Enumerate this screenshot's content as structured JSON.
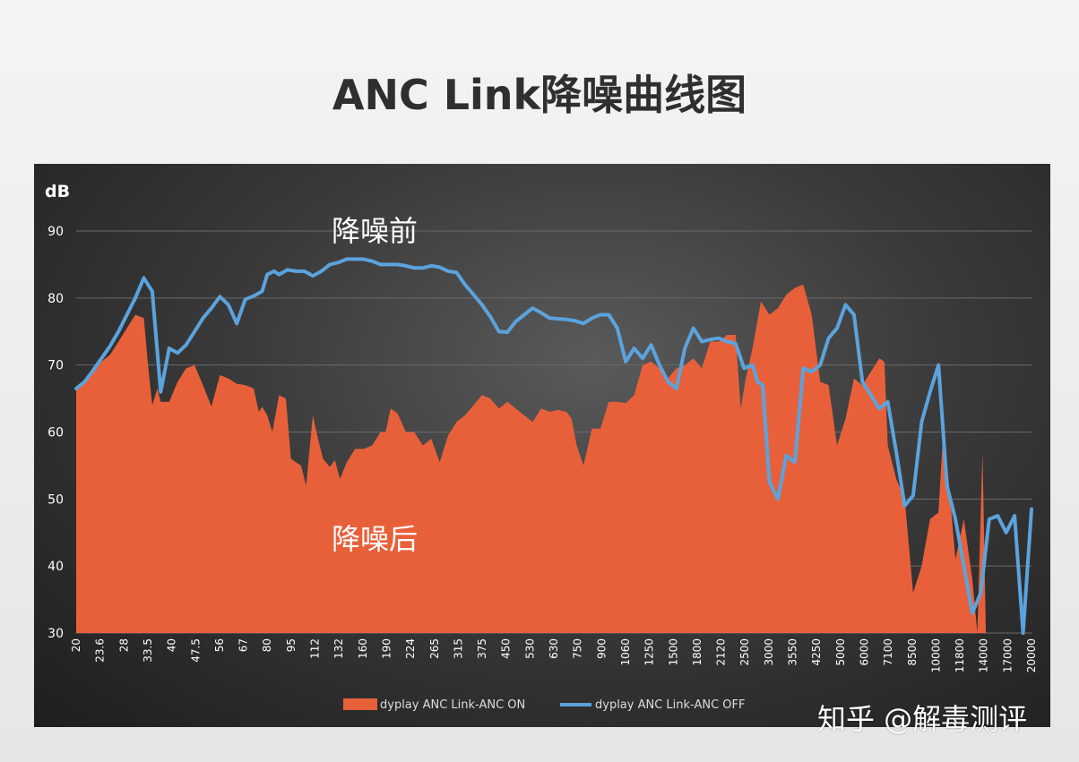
{
  "title": "ANC Link降噪曲线图",
  "watermark": "知乎 @解毒测评",
  "colors": {
    "anc_on_fill": "#e8603a",
    "anc_off_line": "#5ba3dd",
    "panel_background": "#2e2e2e",
    "grid": "#6a6a6a",
    "text": "#ffffff"
  },
  "chart_data": {
    "type": "area",
    "yunit": "dB",
    "ylim": [
      30,
      90
    ],
    "yticks": [
      30,
      40,
      50,
      60,
      70,
      80,
      90
    ],
    "x_tick_labels": [
      "20",
      "23.6",
      "28",
      "33.5",
      "40",
      "47.5",
      "56",
      "67",
      "80",
      "95",
      "112",
      "132",
      "160",
      "190",
      "224",
      "265",
      "315",
      "375",
      "450",
      "530",
      "630",
      "750",
      "900",
      "1060",
      "1250",
      "1500",
      "1800",
      "2120",
      "2500",
      "3000",
      "3550",
      "4250",
      "5000",
      "6000",
      "7100",
      "8500",
      "10000",
      "11800",
      "14000",
      "17000",
      "20000"
    ],
    "annotations": [
      "降噪前",
      "降噪后"
    ],
    "legend_position": "bottom",
    "grid": true,
    "series": [
      {
        "name": "dyplay ANC Link-ANC ON",
        "style": "area",
        "points": [
          [
            0,
            66.5
          ],
          [
            0.5,
            67.5
          ],
          [
            1,
            68.8
          ],
          [
            1.5,
            70.5
          ],
          [
            2,
            71.5
          ],
          [
            2.5,
            73.5
          ],
          [
            3,
            75.5
          ],
          [
            3.5,
            77.5
          ],
          [
            4,
            77
          ],
          [
            4.25,
            70
          ],
          [
            4.5,
            64
          ],
          [
            4.8,
            66.5
          ],
          [
            5,
            64.5
          ],
          [
            5.5,
            64.5
          ],
          [
            6,
            67.5
          ],
          [
            6.5,
            69.5
          ],
          [
            7,
            70
          ],
          [
            7.5,
            67
          ],
          [
            8,
            63.8
          ],
          [
            8.5,
            68.5
          ],
          [
            9,
            68
          ],
          [
            9.5,
            67.2
          ],
          [
            10,
            67
          ],
          [
            10.5,
            66.5
          ],
          [
            10.8,
            63
          ],
          [
            11,
            63.8
          ],
          [
            11.3,
            62.5
          ],
          [
            11.6,
            60
          ],
          [
            12,
            65.5
          ],
          [
            12.4,
            65
          ],
          [
            12.7,
            56
          ],
          [
            13,
            55.5
          ],
          [
            13.3,
            55
          ],
          [
            13.6,
            52
          ],
          [
            14,
            62.5
          ],
          [
            14.3,
            59
          ],
          [
            14.6,
            56
          ],
          [
            15,
            54.8
          ],
          [
            15.3,
            55.8
          ],
          [
            15.6,
            53
          ],
          [
            16,
            55.5
          ],
          [
            16.5,
            57.5
          ],
          [
            17,
            57.5
          ],
          [
            17.5,
            58
          ],
          [
            18,
            60
          ],
          [
            18.3,
            60
          ],
          [
            18.6,
            63.5
          ],
          [
            19,
            62.8
          ],
          [
            19.5,
            60
          ],
          [
            20,
            60
          ],
          [
            20.5,
            58
          ],
          [
            21,
            59
          ],
          [
            21.5,
            55.5
          ],
          [
            22,
            59.5
          ],
          [
            22.5,
            61.5
          ],
          [
            23,
            62.5
          ],
          [
            23.5,
            64
          ],
          [
            24,
            65.5
          ],
          [
            24.5,
            65
          ],
          [
            25,
            63.5
          ],
          [
            25.5,
            64.5
          ],
          [
            26,
            63.5
          ],
          [
            26.5,
            62.5
          ],
          [
            27,
            61.5
          ],
          [
            27.5,
            63.5
          ],
          [
            28,
            63
          ],
          [
            28.5,
            63.3
          ],
          [
            29,
            63
          ],
          [
            29.3,
            62
          ],
          [
            29.6,
            58
          ],
          [
            30,
            55
          ],
          [
            30.5,
            60.5
          ],
          [
            31,
            60.5
          ],
          [
            31.5,
            64.5
          ],
          [
            32,
            64.5
          ],
          [
            32.5,
            64.3
          ],
          [
            33,
            65.5
          ],
          [
            33.5,
            70
          ],
          [
            34,
            70.5
          ],
          [
            34.5,
            69.5
          ],
          [
            35,
            68
          ],
          [
            35.5,
            69.5
          ],
          [
            36,
            70
          ],
          [
            36.5,
            71
          ],
          [
            37,
            69.5
          ],
          [
            37.5,
            73.5
          ],
          [
            38,
            73.5
          ],
          [
            38.5,
            74.5
          ],
          [
            39,
            74.5
          ],
          [
            39.3,
            63.5
          ],
          [
            39.6,
            68
          ],
          [
            40,
            72.5
          ],
          [
            40.5,
            79.5
          ],
          [
            41,
            77.5
          ],
          [
            41.5,
            78.5
          ],
          [
            42,
            80.5
          ],
          [
            42.5,
            81.5
          ],
          [
            43,
            82
          ],
          [
            43.5,
            77.5
          ],
          [
            44,
            67.5
          ],
          [
            44.5,
            67
          ],
          [
            45,
            58
          ],
          [
            45.5,
            62
          ],
          [
            46,
            68
          ],
          [
            46.5,
            67
          ],
          [
            47,
            69
          ],
          [
            47.5,
            71
          ],
          [
            47.8,
            70.5
          ],
          [
            48,
            58
          ],
          [
            48.5,
            53
          ],
          [
            49,
            50
          ],
          [
            49.5,
            36
          ],
          [
            50,
            40
          ],
          [
            50.5,
            47
          ],
          [
            51,
            48
          ],
          [
            51.3,
            61
          ],
          [
            51.7,
            50
          ],
          [
            52,
            41
          ],
          [
            52.5,
            47
          ],
          [
            53,
            38
          ],
          [
            53.3,
            30
          ],
          [
            53.6,
            57
          ],
          [
            53.8,
            30
          ]
        ]
      },
      {
        "name": "dyplay ANC Link-ANC OFF",
        "style": "line",
        "points": [
          [
            0,
            66.5
          ],
          [
            0.5,
            67.5
          ],
          [
            1,
            69.2
          ],
          [
            1.5,
            71
          ],
          [
            2,
            72.8
          ],
          [
            2.5,
            75
          ],
          [
            3,
            77.5
          ],
          [
            3.5,
            80
          ],
          [
            4,
            83
          ],
          [
            4.5,
            81
          ],
          [
            5,
            66
          ],
          [
            5.5,
            72.5
          ],
          [
            6,
            71.8
          ],
          [
            6.5,
            73
          ],
          [
            7,
            75
          ],
          [
            7.5,
            77
          ],
          [
            8,
            78.5
          ],
          [
            8.5,
            80.2
          ],
          [
            9,
            79
          ],
          [
            9.5,
            76.2
          ],
          [
            10,
            79.8
          ],
          [
            10.5,
            80.3
          ],
          [
            11,
            81
          ],
          [
            11.3,
            83.5
          ],
          [
            11.7,
            84
          ],
          [
            12,
            83.5
          ],
          [
            12.5,
            84.2
          ],
          [
            13,
            84
          ],
          [
            13.5,
            84
          ],
          [
            14,
            83.3
          ],
          [
            14.5,
            84
          ],
          [
            15,
            85
          ],
          [
            15.5,
            85.3
          ],
          [
            16,
            85.8
          ],
          [
            16.5,
            85.8
          ],
          [
            17,
            85.8
          ],
          [
            17.5,
            85.5
          ],
          [
            18,
            85
          ],
          [
            18.5,
            85
          ],
          [
            19,
            85
          ],
          [
            19.5,
            84.8
          ],
          [
            20,
            84.5
          ],
          [
            20.5,
            84.5
          ],
          [
            21,
            84.8
          ],
          [
            21.5,
            84.6
          ],
          [
            22,
            84
          ],
          [
            22.5,
            83.8
          ],
          [
            23,
            82
          ],
          [
            23.5,
            80.5
          ],
          [
            24,
            79
          ],
          [
            24.5,
            77.2
          ],
          [
            25,
            75
          ],
          [
            25.5,
            74.9
          ],
          [
            26,
            76.5
          ],
          [
            26.5,
            77.5
          ],
          [
            27,
            78.5
          ],
          [
            27.5,
            77.8
          ],
          [
            28,
            77
          ],
          [
            28.5,
            76.9
          ],
          [
            29,
            76.8
          ],
          [
            29.5,
            76.6
          ],
          [
            30,
            76.2
          ],
          [
            30.5,
            77
          ],
          [
            31,
            77.5
          ],
          [
            31.5,
            77.5
          ],
          [
            32,
            75.5
          ],
          [
            32.5,
            70.5
          ],
          [
            33,
            72.5
          ],
          [
            33.5,
            71
          ],
          [
            34,
            73
          ],
          [
            34.5,
            70
          ],
          [
            35,
            67.5
          ],
          [
            35.5,
            66.5
          ],
          [
            36,
            72.5
          ],
          [
            36.5,
            75.5
          ],
          [
            37,
            73.5
          ],
          [
            37.5,
            73.8
          ],
          [
            38,
            74
          ],
          [
            38.5,
            73.5
          ],
          [
            39,
            73.2
          ],
          [
            39.5,
            69.5
          ],
          [
            40,
            70
          ],
          [
            40.3,
            67.5
          ],
          [
            40.6,
            67
          ],
          [
            41,
            52.5
          ],
          [
            41.5,
            50
          ],
          [
            42,
            56.5
          ],
          [
            42.5,
            55.5
          ],
          [
            43,
            69.5
          ],
          [
            43.5,
            69
          ],
          [
            44,
            70
          ],
          [
            44.5,
            74
          ],
          [
            45,
            75.5
          ],
          [
            45.5,
            79
          ],
          [
            46,
            77.5
          ],
          [
            46.5,
            67.5
          ],
          [
            47,
            65.5
          ],
          [
            47.5,
            63.5
          ],
          [
            48,
            64.5
          ],
          [
            48.5,
            57
          ],
          [
            49,
            49
          ],
          [
            49.5,
            50.5
          ],
          [
            50,
            61.5
          ],
          [
            50.5,
            66
          ],
          [
            51,
            70
          ],
          [
            51.5,
            52
          ],
          [
            52,
            47
          ],
          [
            52.5,
            40
          ],
          [
            53,
            33
          ],
          [
            53.5,
            36
          ],
          [
            54,
            47
          ],
          [
            54.5,
            47.5
          ],
          [
            55,
            45
          ],
          [
            55.5,
            47.5
          ],
          [
            56,
            30
          ],
          [
            56.5,
            48.5
          ]
        ]
      }
    ]
  }
}
